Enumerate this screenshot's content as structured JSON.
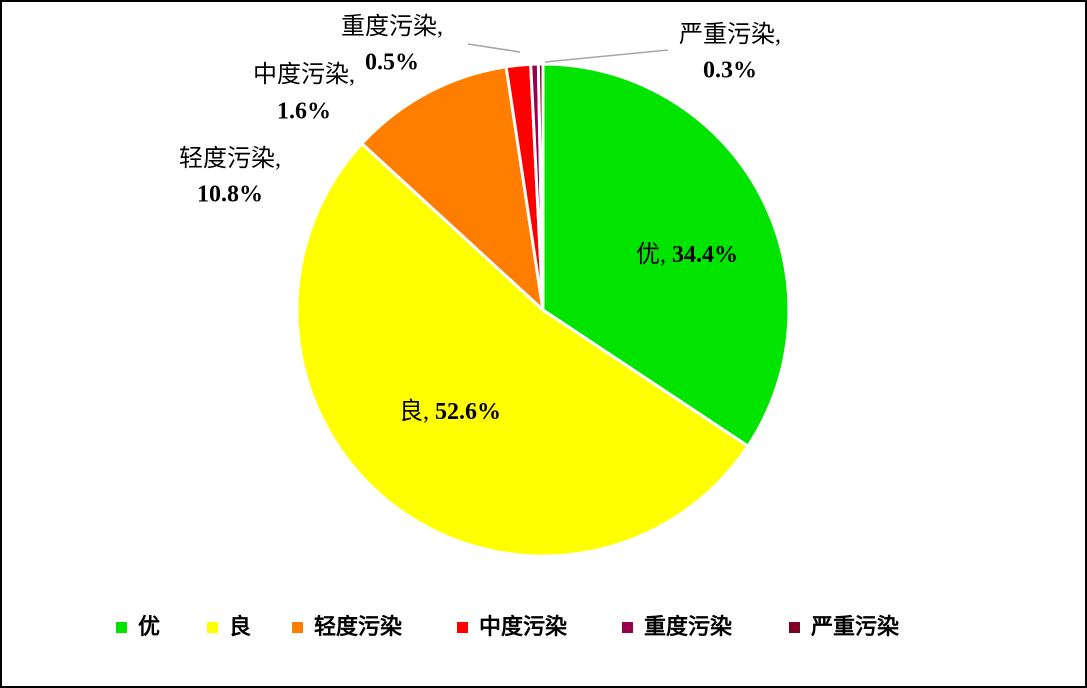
{
  "chart_data": {
    "type": "pie",
    "categories": [
      "优",
      "良",
      "轻度污染",
      "中度污染",
      "重度污染",
      "严重污染"
    ],
    "values": [
      34.4,
      52.6,
      10.8,
      1.6,
      0.5,
      0.3
    ],
    "value_labels": [
      "34.4%",
      "52.6%",
      "10.8%",
      "1.6%",
      "0.5%",
      "0.3%"
    ],
    "label_separator": ",",
    "colors": [
      "#00e400",
      "#ffff00",
      "#ff7e00",
      "#ff0000",
      "#99004c",
      "#7e0023"
    ],
    "legend": "bottom"
  }
}
